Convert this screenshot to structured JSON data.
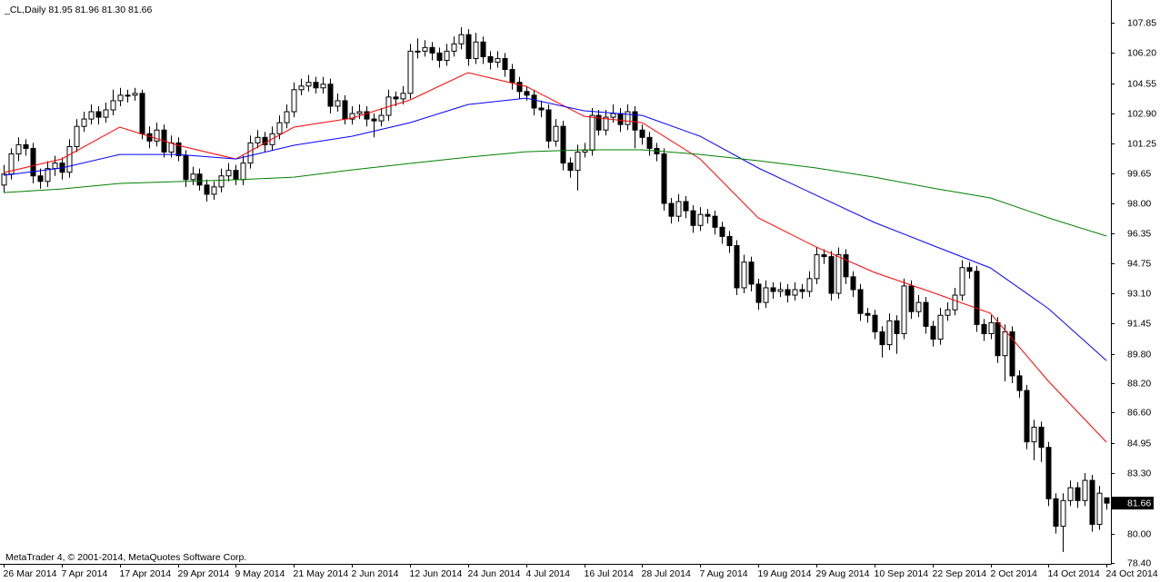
{
  "chart_data": {
    "type": "candlestick",
    "title": "_CL,Daily  81.95 81.96 81.30 81.66",
    "copyright": "MetaTrader 4, © 2001-2014, MetaQuotes Software Corp.",
    "up_color": "#ffffff",
    "down_color": "#000000",
    "ohlc": [
      [
        99.0,
        100.1,
        98.6,
        99.6
      ],
      [
        99.6,
        101.0,
        99.3,
        100.7
      ],
      [
        100.7,
        101.6,
        100.3,
        101.2
      ],
      [
        101.2,
        101.5,
        100.6,
        101.0
      ],
      [
        101.0,
        101.3,
        99.1,
        99.5
      ],
      [
        99.5,
        99.9,
        98.8,
        99.2
      ],
      [
        99.2,
        100.3,
        98.9,
        99.9
      ],
      [
        99.9,
        100.6,
        99.5,
        100.2
      ],
      [
        100.2,
        100.5,
        99.3,
        99.7
      ],
      [
        99.7,
        101.5,
        99.4,
        101.1
      ],
      [
        101.1,
        102.6,
        100.8,
        102.2
      ],
      [
        102.2,
        103.0,
        101.9,
        102.6
      ],
      [
        102.6,
        103.4,
        102.3,
        103.0
      ],
      [
        103.0,
        103.3,
        102.3,
        102.7
      ],
      [
        102.7,
        103.5,
        102.4,
        103.1
      ],
      [
        103.1,
        104.2,
        102.8,
        103.6
      ],
      [
        103.6,
        104.3,
        103.3,
        103.9
      ],
      [
        103.9,
        104.2,
        103.5,
        103.9
      ],
      [
        103.9,
        104.3,
        103.6,
        104.0
      ],
      [
        104.0,
        104.2,
        101.5,
        101.8
      ],
      [
        101.8,
        102.2,
        101.0,
        101.4
      ],
      [
        101.4,
        102.4,
        101.1,
        102.0
      ],
      [
        102.0,
        102.3,
        100.5,
        100.8
      ],
      [
        100.8,
        101.7,
        100.5,
        101.3
      ],
      [
        101.3,
        101.6,
        100.3,
        100.6
      ],
      [
        100.6,
        100.9,
        98.9,
        99.3
      ],
      [
        99.3,
        100.0,
        99.0,
        99.6
      ],
      [
        99.6,
        99.9,
        98.7,
        99.0
      ],
      [
        99.0,
        99.3,
        98.1,
        98.5
      ],
      [
        98.5,
        99.2,
        98.2,
        98.9
      ],
      [
        98.9,
        99.9,
        98.6,
        99.5
      ],
      [
        99.5,
        100.2,
        99.2,
        99.8
      ],
      [
        99.8,
        100.1,
        99.0,
        99.3
      ],
      [
        99.3,
        100.6,
        99.0,
        100.2
      ],
      [
        100.2,
        101.7,
        99.9,
        101.3
      ],
      [
        101.3,
        102.0,
        101.0,
        101.6
      ],
      [
        101.6,
        101.9,
        100.8,
        101.2
      ],
      [
        101.2,
        102.2,
        100.9,
        101.8
      ],
      [
        101.8,
        102.8,
        101.5,
        102.4
      ],
      [
        102.4,
        103.4,
        102.1,
        103.0
      ],
      [
        103.0,
        104.6,
        102.7,
        104.2
      ],
      [
        104.2,
        104.8,
        103.9,
        104.4
      ],
      [
        104.4,
        105.0,
        104.1,
        104.6
      ],
      [
        104.6,
        104.9,
        104.0,
        104.3
      ],
      [
        104.3,
        104.9,
        104.0,
        104.5
      ],
      [
        104.5,
        104.8,
        102.9,
        103.3
      ],
      [
        103.3,
        104.0,
        103.0,
        103.6
      ],
      [
        103.6,
        103.9,
        102.3,
        102.6
      ],
      [
        102.6,
        103.3,
        102.3,
        102.9
      ],
      [
        102.9,
        103.4,
        102.6,
        103.0
      ],
      [
        103.0,
        103.3,
        102.2,
        102.6
      ],
      [
        102.6,
        102.9,
        101.6,
        102.5
      ],
      [
        102.5,
        103.2,
        102.2,
        102.8
      ],
      [
        102.8,
        104.2,
        102.5,
        103.8
      ],
      [
        103.8,
        104.1,
        103.3,
        103.7
      ],
      [
        103.7,
        104.4,
        103.4,
        104.0
      ],
      [
        104.0,
        106.7,
        103.7,
        106.3
      ],
      [
        106.3,
        107.0,
        105.9,
        106.3
      ],
      [
        106.3,
        106.9,
        106.0,
        106.5
      ],
      [
        106.5,
        106.8,
        105.8,
        106.2
      ],
      [
        106.2,
        106.5,
        105.4,
        105.8
      ],
      [
        105.8,
        106.7,
        105.5,
        106.3
      ],
      [
        106.3,
        107.1,
        106.0,
        106.7
      ],
      [
        106.7,
        107.6,
        106.4,
        107.2
      ],
      [
        107.2,
        107.5,
        105.5,
        105.9
      ],
      [
        105.9,
        107.3,
        105.6,
        106.8
      ],
      [
        106.8,
        107.1,
        105.6,
        106.0
      ],
      [
        106.0,
        106.3,
        105.3,
        105.7
      ],
      [
        105.7,
        106.3,
        105.4,
        105.9
      ],
      [
        105.9,
        106.2,
        104.9,
        105.3
      ],
      [
        105.3,
        105.6,
        104.2,
        104.6
      ],
      [
        104.6,
        104.9,
        103.7,
        104.1
      ],
      [
        104.1,
        104.4,
        103.6,
        103.9
      ],
      [
        103.9,
        104.2,
        102.8,
        103.2
      ],
      [
        103.2,
        103.6,
        102.7,
        103.1
      ],
      [
        103.1,
        103.4,
        101.0,
        101.4
      ],
      [
        101.4,
        102.6,
        101.1,
        102.2
      ],
      [
        102.2,
        102.5,
        99.8,
        100.2
      ],
      [
        100.2,
        100.5,
        99.4,
        99.8
      ],
      [
        99.8,
        101.2,
        98.7,
        100.8
      ],
      [
        100.8,
        101.3,
        100.5,
        100.9
      ],
      [
        100.9,
        103.2,
        100.6,
        102.8
      ],
      [
        102.8,
        103.1,
        101.7,
        102.0
      ],
      [
        102.0,
        103.1,
        101.7,
        102.7
      ],
      [
        102.7,
        103.4,
        102.4,
        102.9
      ],
      [
        102.9,
        103.2,
        101.9,
        102.3
      ],
      [
        102.3,
        103.4,
        102.0,
        103.0
      ],
      [
        103.0,
        103.3,
        101.0,
        102.0
      ],
      [
        102.0,
        102.3,
        101.2,
        101.6
      ],
      [
        101.6,
        101.9,
        100.6,
        101.0
      ],
      [
        101.0,
        101.3,
        100.3,
        100.7
      ],
      [
        100.7,
        101.0,
        97.6,
        98.0
      ],
      [
        98.0,
        98.3,
        96.9,
        97.3
      ],
      [
        97.3,
        98.5,
        97.0,
        98.1
      ],
      [
        98.1,
        98.4,
        97.2,
        97.6
      ],
      [
        97.6,
        97.9,
        96.4,
        96.8
      ],
      [
        96.8,
        97.8,
        96.5,
        97.4
      ],
      [
        97.4,
        97.7,
        96.9,
        97.3
      ],
      [
        97.3,
        97.6,
        96.3,
        96.7
      ],
      [
        96.7,
        97.0,
        95.8,
        96.2
      ],
      [
        96.2,
        96.5,
        95.3,
        95.7
      ],
      [
        95.7,
        96.0,
        93.0,
        93.4
      ],
      [
        93.4,
        95.2,
        93.1,
        94.8
      ],
      [
        94.8,
        95.1,
        93.2,
        93.6
      ],
      [
        93.6,
        93.9,
        92.2,
        92.6
      ],
      [
        92.6,
        93.8,
        92.3,
        93.4
      ],
      [
        93.4,
        93.7,
        92.8,
        93.2
      ],
      [
        93.2,
        93.7,
        92.9,
        93.3
      ],
      [
        93.3,
        93.6,
        92.6,
        93.0
      ],
      [
        93.0,
        93.7,
        92.7,
        93.3
      ],
      [
        93.3,
        93.6,
        92.8,
        93.2
      ],
      [
        93.2,
        94.3,
        92.9,
        93.9
      ],
      [
        93.9,
        95.6,
        93.6,
        95.2
      ],
      [
        95.2,
        95.5,
        94.7,
        95.1
      ],
      [
        95.1,
        95.4,
        92.7,
        93.1
      ],
      [
        93.1,
        95.6,
        92.8,
        95.2
      ],
      [
        95.2,
        95.5,
        93.6,
        94.0
      ],
      [
        94.0,
        94.3,
        92.9,
        93.3
      ],
      [
        93.3,
        93.6,
        91.6,
        92.0
      ],
      [
        92.0,
        92.3,
        91.5,
        91.9
      ],
      [
        91.9,
        92.2,
        90.6,
        91.0
      ],
      [
        91.0,
        91.3,
        89.6,
        90.3
      ],
      [
        90.3,
        92.0,
        90.0,
        91.6
      ],
      [
        91.6,
        91.9,
        89.8,
        90.9
      ],
      [
        90.9,
        93.9,
        90.6,
        93.5
      ],
      [
        93.5,
        93.8,
        91.7,
        92.1
      ],
      [
        92.1,
        93.0,
        91.8,
        92.6
      ],
      [
        92.6,
        92.9,
        90.9,
        91.3
      ],
      [
        91.3,
        91.6,
        90.2,
        90.6
      ],
      [
        90.6,
        92.3,
        90.3,
        91.9
      ],
      [
        91.9,
        92.6,
        91.6,
        92.2
      ],
      [
        92.2,
        93.4,
        91.9,
        93.0
      ],
      [
        93.0,
        94.9,
        92.7,
        94.5
      ],
      [
        94.5,
        94.8,
        93.9,
        94.3
      ],
      [
        94.3,
        94.6,
        91.0,
        91.4
      ],
      [
        91.4,
        91.7,
        90.5,
        90.9
      ],
      [
        90.9,
        91.9,
        90.6,
        91.5
      ],
      [
        91.5,
        91.8,
        89.3,
        89.7
      ],
      [
        89.7,
        91.4,
        88.3,
        91.0
      ],
      [
        91.0,
        91.3,
        88.2,
        88.6
      ],
      [
        88.6,
        88.9,
        87.4,
        87.8
      ],
      [
        87.8,
        88.1,
        84.6,
        85.0
      ],
      [
        85.0,
        86.2,
        84.0,
        85.8
      ],
      [
        85.8,
        86.1,
        83.9,
        84.7
      ],
      [
        84.7,
        85.0,
        81.5,
        81.9
      ],
      [
        81.9,
        82.2,
        80.0,
        80.4
      ],
      [
        80.4,
        82.2,
        79.0,
        81.8
      ],
      [
        81.8,
        82.9,
        81.5,
        82.5
      ],
      [
        82.5,
        82.8,
        81.4,
        81.8
      ],
      [
        81.8,
        83.3,
        81.5,
        82.9
      ],
      [
        82.9,
        83.2,
        80.1,
        80.5
      ],
      [
        80.5,
        82.6,
        80.2,
        82.2
      ],
      [
        81.95,
        81.96,
        81.3,
        81.66
      ]
    ],
    "series": [
      {
        "color": "#ff0000",
        "x": [
          0,
          8,
          16,
          24,
          32,
          40,
          48,
          56,
          64,
          72,
          80,
          88,
          96,
          104,
          112,
          120,
          128,
          136,
          144,
          152
        ],
        "values": [
          99.68,
          100.42,
          102.16,
          101.17,
          100.42,
          102.16,
          102.65,
          103.64,
          105.13,
          104.38,
          102.75,
          102.4,
          100.42,
          97.21,
          95.62,
          94.24,
          93.15,
          92.01,
          88.3,
          84.98
        ]
      },
      {
        "color": "#0000ff",
        "x": [
          0,
          8,
          16,
          24,
          32,
          40,
          48,
          56,
          64,
          72,
          80,
          88,
          96,
          104,
          112,
          120,
          128,
          136,
          144,
          152
        ],
        "values": [
          99.53,
          99.93,
          100.67,
          100.67,
          100.42,
          101.17,
          101.66,
          102.4,
          103.39,
          103.74,
          103.05,
          102.8,
          101.66,
          99.93,
          98.44,
          96.96,
          95.72,
          94.48,
          92.26,
          89.43
        ]
      },
      {
        "color": "#008000",
        "x": [
          0,
          8,
          16,
          24,
          32,
          40,
          48,
          56,
          64,
          72,
          80,
          88,
          96,
          104,
          112,
          120,
          128,
          136,
          144,
          152
        ],
        "values": [
          98.59,
          98.79,
          99.09,
          99.19,
          99.29,
          99.43,
          99.83,
          100.18,
          100.52,
          100.82,
          100.92,
          100.92,
          100.67,
          100.33,
          99.93,
          99.43,
          98.84,
          98.3,
          97.21,
          96.22
        ]
      }
    ],
    "xlim": [
      -0.5,
      152.6
    ],
    "ylim": [
      78.35,
      109.09
    ],
    "xticks": [
      {
        "value": 0,
        "label": "26 Mar 2014"
      },
      {
        "value": 8,
        "label": "7 Apr 2014"
      },
      {
        "value": 16,
        "label": "17 Apr 2014"
      },
      {
        "value": 24,
        "label": "29 Apr 2014"
      },
      {
        "value": 32,
        "label": "9 May 2014"
      },
      {
        "value": 40,
        "label": "21 May 2014"
      },
      {
        "value": 48,
        "label": "2 Jun 2014"
      },
      {
        "value": 56,
        "label": "12 Jun 2014"
      },
      {
        "value": 64,
        "label": "24 Jun 2014"
      },
      {
        "value": 72,
        "label": "4 Jul 2014"
      },
      {
        "value": 80,
        "label": "16 Jul 2014"
      },
      {
        "value": 88,
        "label": "28 Jul 2014"
      },
      {
        "value": 96,
        "label": "7 Aug 2014"
      },
      {
        "value": 104,
        "label": "19 Aug 2014"
      },
      {
        "value": 112,
        "label": "29 Aug 2014"
      },
      {
        "value": 120,
        "label": "10 Sep 2014"
      },
      {
        "value": 128,
        "label": "22 Sep 2014"
      },
      {
        "value": 136,
        "label": "2 Oct 2014"
      },
      {
        "value": 144,
        "label": "14 Oct 2014"
      },
      {
        "value": 152,
        "label": "24 Oct 2014"
      }
    ],
    "yticks": [
      107.85,
      {
        "value": 106.2,
        "label": "106.20"
      },
      104.55,
      {
        "value": 102.9,
        "label": "102.90"
      },
      101.25,
      99.65,
      {
        "value": 98,
        "label": "98.00"
      },
      96.35,
      94.75,
      {
        "value": 93.1,
        "label": "93.10"
      },
      91.45,
      {
        "value": 89.8,
        "label": "89.80"
      },
      {
        "value": 88.2,
        "label": "88.20"
      },
      {
        "value": 86.6,
        "label": "86.60"
      },
      84.95,
      {
        "value": 83.3,
        "label": "83.30"
      },
      {
        "value": 80,
        "label": "80.00"
      },
      {
        "value": 78.4,
        "label": "78.40"
      }
    ],
    "last_price": 81.66
  }
}
